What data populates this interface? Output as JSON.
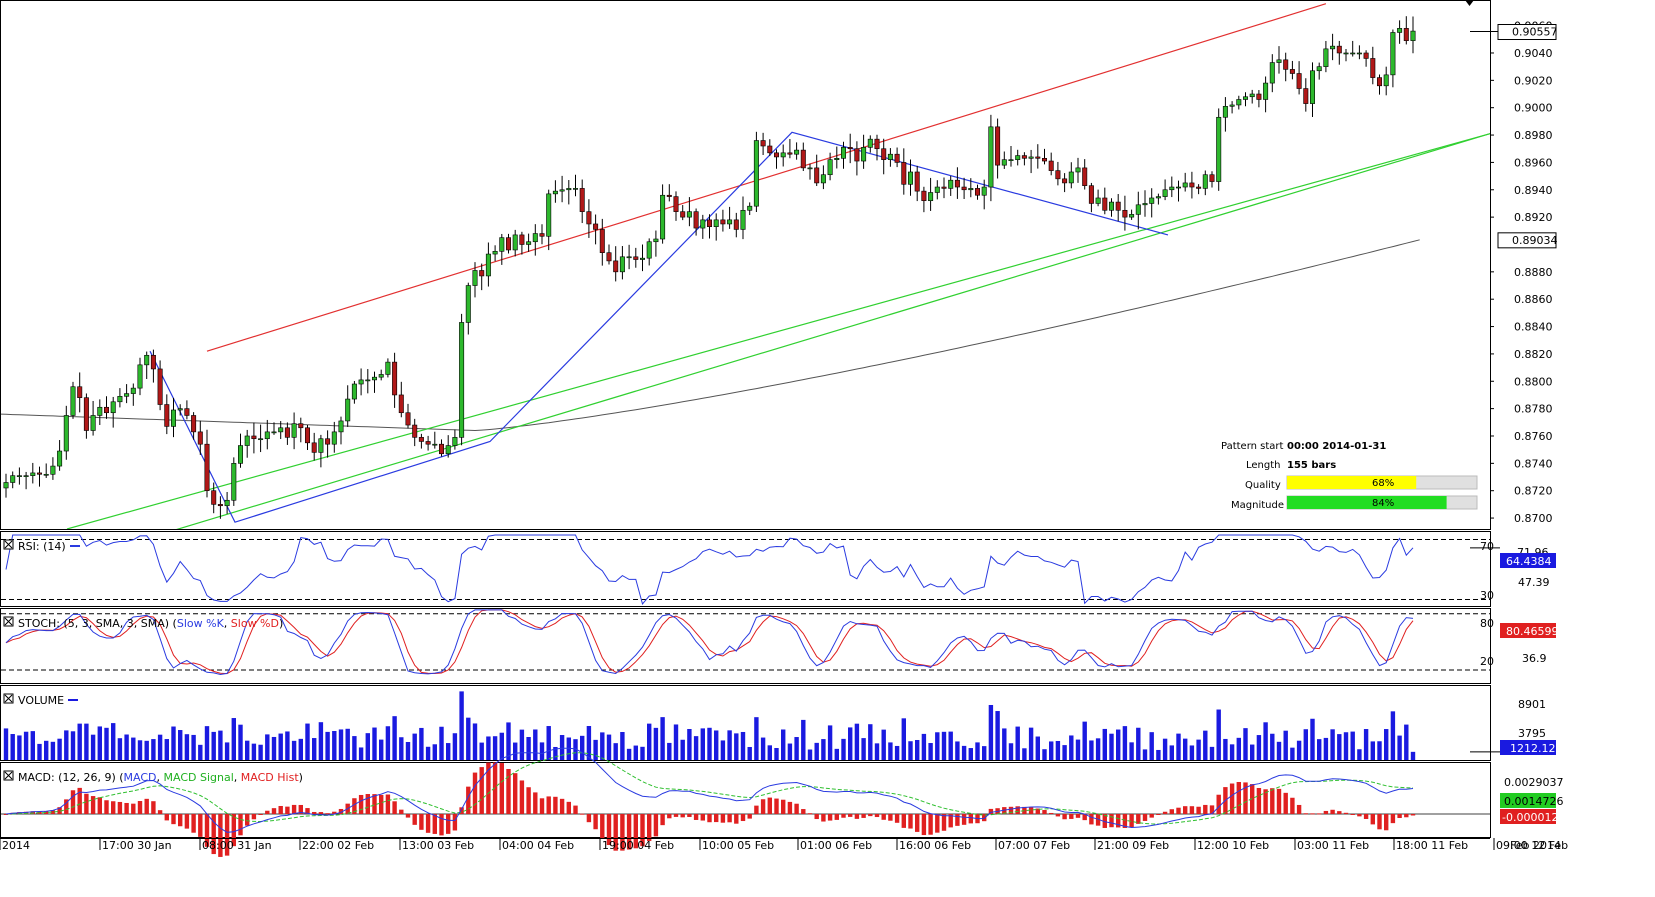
{
  "colors": {
    "bull": "#2db82d",
    "bear": "#b01818",
    "ma": "#555555",
    "resistance": "#e23030",
    "support": "#30d030",
    "pattern": "#2a3be0",
    "rsi": "#2a3be0",
    "slow_k": "#2a3be0",
    "slow_d": "#e02020",
    "volume": "#1a1ae0",
    "macd": "#2a3be0",
    "macd_signal": "#30c030",
    "macd_hist": "#e02020",
    "quality_bar": "#ffff00",
    "magnitude_bar": "#22dd22"
  },
  "x_axis": {
    "labels": [
      "2014",
      "17:00 30 Jan",
      "08:00 31 Jan",
      "22:00 02 Feb",
      "13:00 03 Feb",
      "04:00 04 Feb",
      "19:00 04 Feb",
      "10:00 05 Feb",
      "01:00 06 Feb",
      "16:00 06 Feb",
      "07:00 07 Feb",
      "21:00 09 Feb",
      "12:00 10 Feb",
      "03:00 11 Feb",
      "18:00 11 Feb",
      "09:00 12 Feb"
    ],
    "partial_label": "Feb 2014"
  },
  "info": {
    "pattern_start_label": "Pattern start",
    "pattern_start_value": "00:00 2014-01-31",
    "length_label": "Length",
    "length_value": "155 bars",
    "quality_label": "Quality",
    "quality_value": "68%",
    "quality_fraction": 0.68,
    "magnitude_label": "Magnitude",
    "magnitude_value": "84%",
    "magnitude_fraction": 0.84
  },
  "main_panel": {
    "y_ticks": [
      "0.9040",
      "0.9020",
      "0.9000",
      "0.8980",
      "0.8960",
      "0.8940",
      "0.8920",
      "0.8880",
      "0.8860",
      "0.8840",
      "0.8820",
      "0.8800",
      "0.8780",
      "0.8760",
      "0.8740",
      "0.8720",
      "0.8700"
    ],
    "last_price": "0.90557",
    "ma_value": "0.89034",
    "top_tick_partial": "0.9060"
  },
  "rsi_panel": {
    "title": "RSI: (14)",
    "level_high": "70",
    "level_low": "30",
    "max_label": "71.96",
    "mid_label": "47.39",
    "value": "64.4384"
  },
  "stoch_panel": {
    "title_prefix": "STOCH: (5, 3, SMA, 3, SMA)",
    "k_name": "Slow %K",
    "d_name": "Slow %D",
    "level_high": "80",
    "level_low": "20",
    "mid_label": "36.9",
    "value": "80.46599"
  },
  "volume_panel": {
    "title": "VOLUME",
    "tick_high": "8901",
    "tick_mid": "3795",
    "value": "1212.12"
  },
  "macd_panel": {
    "title_prefix": "MACD: (12, 26, 9)",
    "macd_name": "MACD",
    "signal_name": "MACD Signal",
    "hist_name": "MACD Hist",
    "tick_top": "0.0029037",
    "value_macd": "0.0014726",
    "value_hist": "-0.0000127"
  },
  "chart_data": {
    "type": "candlestick",
    "instrument_unit": "price",
    "pattern": "ascending channel",
    "ylim": [
      0.8692,
      0.9078
    ],
    "closes": [
      0.8726,
      0.8731,
      0.8731,
      0.8731,
      0.8733,
      0.8732,
      0.8732,
      0.8738,
      0.8749,
      0.8775,
      0.8796,
      0.8788,
      0.8764,
      0.8775,
      0.8781,
      0.8777,
      0.8785,
      0.8789,
      0.8791,
      0.8795,
      0.8812,
      0.8819,
      0.8809,
      0.8783,
      0.8767,
      0.8779,
      0.878,
      0.8775,
      0.8763,
      0.8754,
      0.872,
      0.871,
      0.8709,
      0.8713,
      0.874,
      0.8753,
      0.876,
      0.8758,
      0.8758,
      0.8763,
      0.8763,
      0.8766,
      0.8759,
      0.8769,
      0.8766,
      0.8755,
      0.8748,
      0.8758,
      0.8754,
      0.8763,
      0.8771,
      0.8787,
      0.8798,
      0.8801,
      0.8801,
      0.8803,
      0.8805,
      0.8814,
      0.879,
      0.8777,
      0.8768,
      0.8759,
      0.8756,
      0.8754,
      0.8754,
      0.8747,
      0.8753,
      0.8759,
      0.8843,
      0.887,
      0.8881,
      0.8877,
      0.8893,
      0.8895,
      0.8905,
      0.8896,
      0.8907,
      0.89,
      0.8902,
      0.8908,
      0.8906,
      0.8937,
      0.8939,
      0.894,
      0.8941,
      0.8941,
      0.8924,
      0.8915,
      0.8911,
      0.8894,
      0.8888,
      0.888,
      0.8891,
      0.8891,
      0.8889,
      0.889,
      0.8902,
      0.8904,
      0.8936,
      0.8935,
      0.8924,
      0.892,
      0.8924,
      0.8912,
      0.8918,
      0.8913,
      0.8918,
      0.8915,
      0.8918,
      0.8911,
      0.8925,
      0.8928,
      0.8976,
      0.8972,
      0.8967,
      0.8964,
      0.8967,
      0.8966,
      0.8969,
      0.8956,
      0.8956,
      0.8945,
      0.8951,
      0.8962,
      0.8963,
      0.8971,
      0.897,
      0.8961,
      0.8971,
      0.8977,
      0.897,
      0.8962,
      0.8966,
      0.896,
      0.8944,
      0.8953,
      0.8939,
      0.8932,
      0.8938,
      0.8942,
      0.8941,
      0.8947,
      0.8942,
      0.894,
      0.8941,
      0.8936,
      0.8942,
      0.8986,
      0.8958,
      0.8962,
      0.8962,
      0.8965,
      0.8963,
      0.8964,
      0.8963,
      0.8961,
      0.8954,
      0.8948,
      0.8945,
      0.8953,
      0.8956,
      0.8943,
      0.893,
      0.8934,
      0.8925,
      0.8931,
      0.8925,
      0.892,
      0.8922,
      0.8929,
      0.893,
      0.8934,
      0.8935,
      0.894,
      0.8942,
      0.8942,
      0.8945,
      0.8942,
      0.8941,
      0.8951,
      0.8946,
      0.8993,
      0.9001,
      0.9002,
      0.9006,
      0.9008,
      0.901,
      0.9006,
      0.9018,
      0.9033,
      0.9035,
      0.9028,
      0.9025,
      0.9014,
      0.9003,
      0.9027,
      0.903,
      0.9043,
      0.9045,
      0.904,
      0.904,
      0.904,
      0.904,
      0.9036,
      0.9022,
      0.9016,
      0.9024,
      0.9055,
      0.9058,
      0.9049,
      0.9056
    ],
    "ma_start": 0.8776,
    "ma_end": 0.89034,
    "resistance_line": {
      "from": {
        "bar": 30,
        "price": 0.8822
      },
      "to": {
        "bar": 197,
        "price": 0.9076
      }
    },
    "support_line": {
      "from": {
        "bar": 30,
        "price": 0.8692
      },
      "to": {
        "bar": 226,
        "price": 0.898
      }
    },
    "rsi": {
      "ylim": [
        25,
        75
      ],
      "levels": [
        70,
        30
      ],
      "last": 64.4384
    },
    "stochastic": {
      "ylim": [
        5,
        85
      ],
      "levels": [
        80,
        20
      ],
      "last": 80.46599
    },
    "volume": {
      "max_tick": 8901,
      "mid_tick": 3795,
      "last": 1212.12
    },
    "macd": {
      "last_macd": 0.0014726,
      "last_signal": 0.0014853,
      "last_hist": -1.27e-05
    }
  }
}
